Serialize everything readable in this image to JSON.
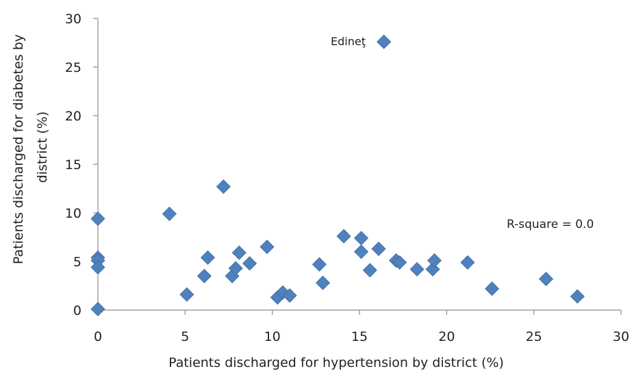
{
  "chart_data": {
    "type": "scatter",
    "xlabel": "Patients discharged for hypertension by district (%)",
    "ylabel_lines": [
      "Patients discharged for diabetes by",
      "district (%)"
    ],
    "xlim": [
      0,
      30
    ],
    "ylim": [
      0,
      30
    ],
    "xticks": [
      0,
      5,
      10,
      15,
      20,
      25,
      30
    ],
    "yticks": [
      0,
      5,
      10,
      15,
      20,
      25,
      30
    ],
    "grid": false,
    "marker": "diamond",
    "marker_color": "#4f81bd",
    "annotations": {
      "r_square": "R-square = 0.0",
      "point_label": "Edineţ"
    },
    "labeled_point": {
      "x": 16.4,
      "y": 27.6
    },
    "points": [
      {
        "x": 0.0,
        "y": 9.4
      },
      {
        "x": 0.0,
        "y": 5.4
      },
      {
        "x": 0.0,
        "y": 5.1
      },
      {
        "x": 0.0,
        "y": 4.4
      },
      {
        "x": 0.0,
        "y": 0.1
      },
      {
        "x": 4.1,
        "y": 9.9
      },
      {
        "x": 5.1,
        "y": 1.6
      },
      {
        "x": 6.1,
        "y": 3.5
      },
      {
        "x": 6.3,
        "y": 5.4
      },
      {
        "x": 7.2,
        "y": 12.7
      },
      {
        "x": 7.7,
        "y": 3.5
      },
      {
        "x": 7.9,
        "y": 4.3
      },
      {
        "x": 8.1,
        "y": 5.9
      },
      {
        "x": 8.7,
        "y": 4.8
      },
      {
        "x": 9.7,
        "y": 6.5
      },
      {
        "x": 10.3,
        "y": 1.3
      },
      {
        "x": 10.6,
        "y": 1.8
      },
      {
        "x": 11.0,
        "y": 1.5
      },
      {
        "x": 12.7,
        "y": 4.7
      },
      {
        "x": 12.9,
        "y": 2.8
      },
      {
        "x": 14.1,
        "y": 7.6
      },
      {
        "x": 15.1,
        "y": 7.4
      },
      {
        "x": 15.1,
        "y": 6.0
      },
      {
        "x": 15.6,
        "y": 4.1
      },
      {
        "x": 16.1,
        "y": 6.3
      },
      {
        "x": 16.4,
        "y": 27.6
      },
      {
        "x": 17.1,
        "y": 5.1
      },
      {
        "x": 17.3,
        "y": 4.9
      },
      {
        "x": 18.3,
        "y": 4.2
      },
      {
        "x": 19.2,
        "y": 4.2
      },
      {
        "x": 19.3,
        "y": 5.1
      },
      {
        "x": 21.2,
        "y": 4.9
      },
      {
        "x": 22.6,
        "y": 2.2
      },
      {
        "x": 25.7,
        "y": 3.2
      },
      {
        "x": 27.5,
        "y": 1.4
      }
    ]
  }
}
